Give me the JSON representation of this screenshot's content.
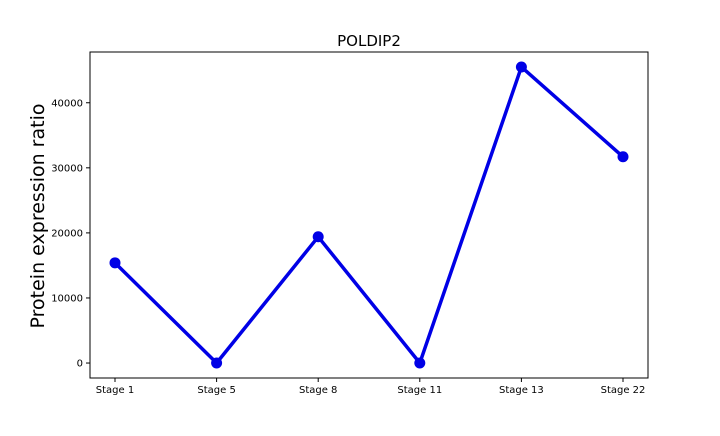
{
  "chart_data": {
    "type": "line",
    "title": "POLDIP2",
    "xlabel": "",
    "ylabel": "Protein expression ratio",
    "categories": [
      "Stage 1",
      "Stage 5",
      "Stage 8",
      "Stage 11",
      "Stage 13",
      "Stage 22"
    ],
    "series": [
      {
        "values": [
          15400,
          0,
          19400,
          0,
          45500,
          31700
        ],
        "color": "#0000e6"
      }
    ],
    "ylim": [
      -2300,
      47800
    ],
    "yticks": [
      0,
      10000,
      20000,
      30000,
      40000
    ],
    "ytick_labels": [
      "0",
      "10000",
      "20000",
      "30000",
      "40000"
    ],
    "grid": false,
    "legend": "none"
  }
}
